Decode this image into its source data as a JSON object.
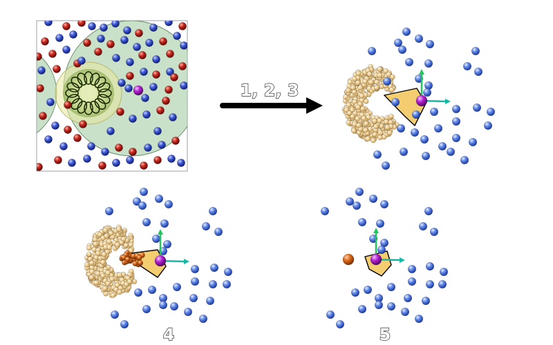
{
  "arrow_label": "1, 2, 3",
  "step4_label": "4",
  "step5_label": "5",
  "colors": {
    "blue_sphere": "#2a3fc0",
    "red_sphere": "#c0201a",
    "purple_sphere": "#a020c0",
    "orange_sphere": "#d2691e",
    "green_region": "#9cc79c",
    "pocket_yellow": "#f2c14e",
    "cluster_beige": "#f0d29a",
    "axis_green": "#22c55e",
    "axis_teal": "#14b8a6"
  },
  "panels": [
    {
      "id": "initial",
      "icon": "simulation-box-icon"
    },
    {
      "id": "steps-1-2-3",
      "icon": "selected-shell-icon"
    },
    {
      "id": "step-4",
      "icon": "cluster-orange-molecules-icon"
    },
    {
      "id": "step-5",
      "icon": "single-orange-center-icon"
    }
  ]
}
